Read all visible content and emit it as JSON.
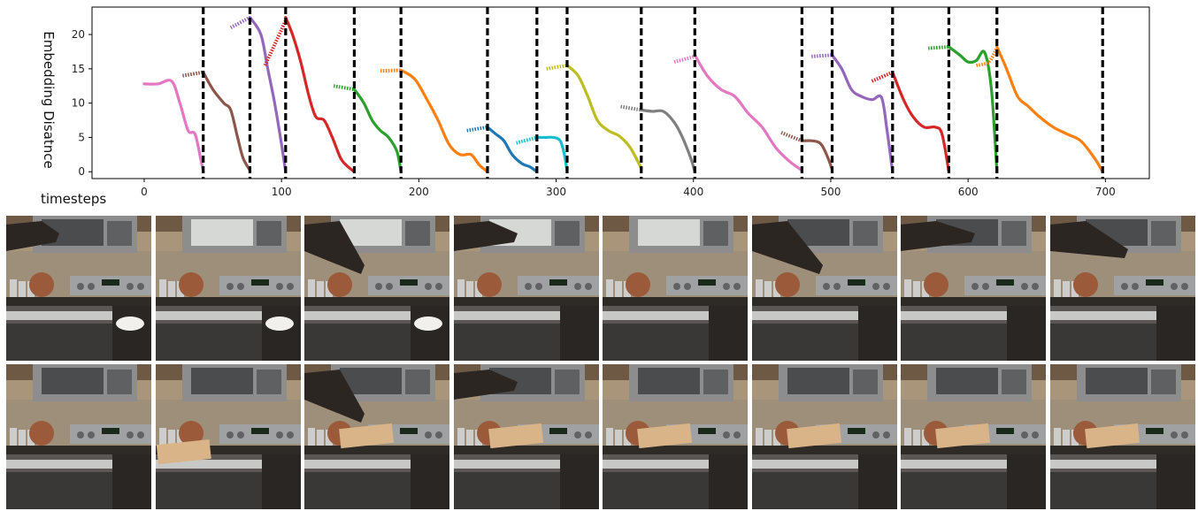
{
  "chart_data": {
    "type": "line",
    "title": "",
    "xlabel": "timesteps",
    "ylabel": "Embedding Disatnce",
    "xlim": [
      -38,
      732
    ],
    "ylim": [
      -1,
      24
    ],
    "xticks": [
      0,
      100,
      200,
      300,
      400,
      500,
      600,
      700
    ],
    "yticks": [
      0,
      5,
      10,
      15,
      20
    ],
    "grid": false,
    "legend": "none",
    "boundaries": [
      43,
      77,
      103,
      153,
      187,
      250,
      286,
      308,
      362,
      401,
      479,
      501,
      545,
      586,
      621,
      698
    ],
    "segments": [
      {
        "color": "#e377c2",
        "x": [
          0,
          10,
          20,
          26,
          32,
          37,
          41,
          43
        ],
        "y": [
          12.8,
          12.8,
          13.2,
          10,
          6,
          5.5,
          2,
          0
        ],
        "pre": {
          "x": [],
          "y": []
        }
      },
      {
        "color": "#8c564b",
        "x": [
          43,
          50,
          58,
          63,
          68,
          72,
          77
        ],
        "y": [
          14.5,
          12,
          10,
          9,
          5,
          2,
          0.2
        ],
        "pre": {
          "x": [
            28,
            43
          ],
          "y": [
            14,
            14.5
          ]
        }
      },
      {
        "color": "#9467bd",
        "x": [
          77,
          85,
          90,
          95,
          100,
          103
        ],
        "y": [
          22.5,
          20,
          15,
          10,
          4,
          0
        ],
        "pre": {
          "x": [
            63,
            77
          ],
          "y": [
            21,
            22.5
          ]
        }
      },
      {
        "color": "#d62728",
        "x": [
          103,
          108,
          114,
          120,
          125,
          131,
          137,
          143,
          148,
          153
        ],
        "y": [
          22.5,
          20,
          16,
          11,
          8,
          7.5,
          5,
          2,
          0.8,
          0
        ],
        "pre": {
          "x": [
            88,
            103
          ],
          "y": [
            15.5,
            22
          ]
        }
      },
      {
        "color": "#2ca02c",
        "x": [
          153,
          160,
          166,
          172,
          178,
          184,
          187
        ],
        "y": [
          12,
          10,
          7.5,
          6,
          5,
          3,
          0
        ],
        "pre": {
          "x": [
            138,
            153
          ],
          "y": [
            12.5,
            12
          ]
        }
      },
      {
        "color": "#ff7f0e",
        "x": [
          187,
          197,
          206,
          214,
          222,
          230,
          238,
          244,
          250
        ],
        "y": [
          14.8,
          13.5,
          10.5,
          7.5,
          4,
          2.5,
          2.5,
          1,
          0
        ],
        "pre": {
          "x": [
            172,
            187
          ],
          "y": [
            14.7,
            14.8
          ]
        }
      },
      {
        "color": "#1f77b4",
        "x": [
          250,
          256,
          262,
          268,
          275,
          281,
          286
        ],
        "y": [
          6.5,
          5.5,
          4.5,
          2.5,
          1.2,
          0.7,
          0
        ],
        "pre": {
          "x": [
            235,
            250
          ],
          "y": [
            6,
            6.5
          ]
        }
      },
      {
        "color": "#17becf",
        "x": [
          286,
          292,
          298,
          303,
          306,
          308
        ],
        "y": [
          5,
          5,
          5,
          4.5,
          2.5,
          0
        ],
        "pre": {
          "x": [
            271,
            286
          ],
          "y": [
            4.2,
            5
          ]
        }
      },
      {
        "color": "#bcbd22",
        "x": [
          308,
          316,
          323,
          330,
          338,
          346,
          354,
          362
        ],
        "y": [
          15.5,
          14,
          11,
          7.5,
          6,
          5.2,
          3.5,
          0.5
        ],
        "pre": {
          "x": [
            293,
            308
          ],
          "y": [
            15,
            15.5
          ]
        }
      },
      {
        "color": "#7f7f7f",
        "x": [
          362,
          370,
          378,
          386,
          392,
          398,
          401
        ],
        "y": [
          9,
          8.8,
          8.8,
          7.2,
          5,
          2,
          0
        ],
        "pre": {
          "x": [
            347,
            362
          ],
          "y": [
            9.5,
            9
          ]
        }
      },
      {
        "color": "#e377c2",
        "x": [
          401,
          410,
          420,
          430,
          440,
          450,
          460,
          470,
          479
        ],
        "y": [
          17,
          14,
          12,
          11,
          8.5,
          6.5,
          3.5,
          1.5,
          0.2
        ],
        "pre": {
          "x": [
            386,
            401
          ],
          "y": [
            16,
            16.8
          ]
        }
      },
      {
        "color": "#8c564b",
        "x": [
          479,
          487,
          493,
          498,
          501
        ],
        "y": [
          4.5,
          4.5,
          4,
          2,
          0.3
        ],
        "pre": {
          "x": [
            464,
            479
          ],
          "y": [
            5.7,
            4.5
          ]
        }
      },
      {
        "color": "#9467bd",
        "x": [
          501,
          508,
          515,
          522,
          530,
          537,
          541,
          545
        ],
        "y": [
          17,
          15,
          12,
          11,
          10.5,
          10.8,
          6,
          0
        ],
        "pre": {
          "x": [
            486,
            501
          ],
          "y": [
            16.8,
            17
          ]
        }
      },
      {
        "color": "#d62728",
        "x": [
          545,
          553,
          560,
          568,
          576,
          581,
          586
        ],
        "y": [
          14.5,
          10.5,
          8,
          6.5,
          6.5,
          5.5,
          0
        ],
        "pre": {
          "x": [
            530,
            545
          ],
          "y": [
            13.2,
            14.5
          ]
        }
      },
      {
        "color": "#2ca02c",
        "x": [
          586,
          594,
          600,
          606,
          612,
          617,
          621
        ],
        "y": [
          18.2,
          17,
          16,
          16.2,
          17.4,
          12,
          0
        ],
        "pre": {
          "x": [
            571,
            586
          ],
          "y": [
            18,
            18.2
          ]
        }
      },
      {
        "color": "#ff7f0e",
        "x": [
          621,
          628,
          636,
          644,
          652,
          662,
          672,
          682,
          692,
          698
        ],
        "y": [
          18.2,
          15,
          11,
          9.5,
          8,
          6.5,
          5.5,
          4.5,
          2,
          0
        ],
        "pre": {
          "x": [
            606,
            615,
            621
          ],
          "y": [
            15.5,
            16,
            18
          ]
        }
      }
    ]
  },
  "frames": {
    "row1_count": 8,
    "row2_count": 8
  }
}
